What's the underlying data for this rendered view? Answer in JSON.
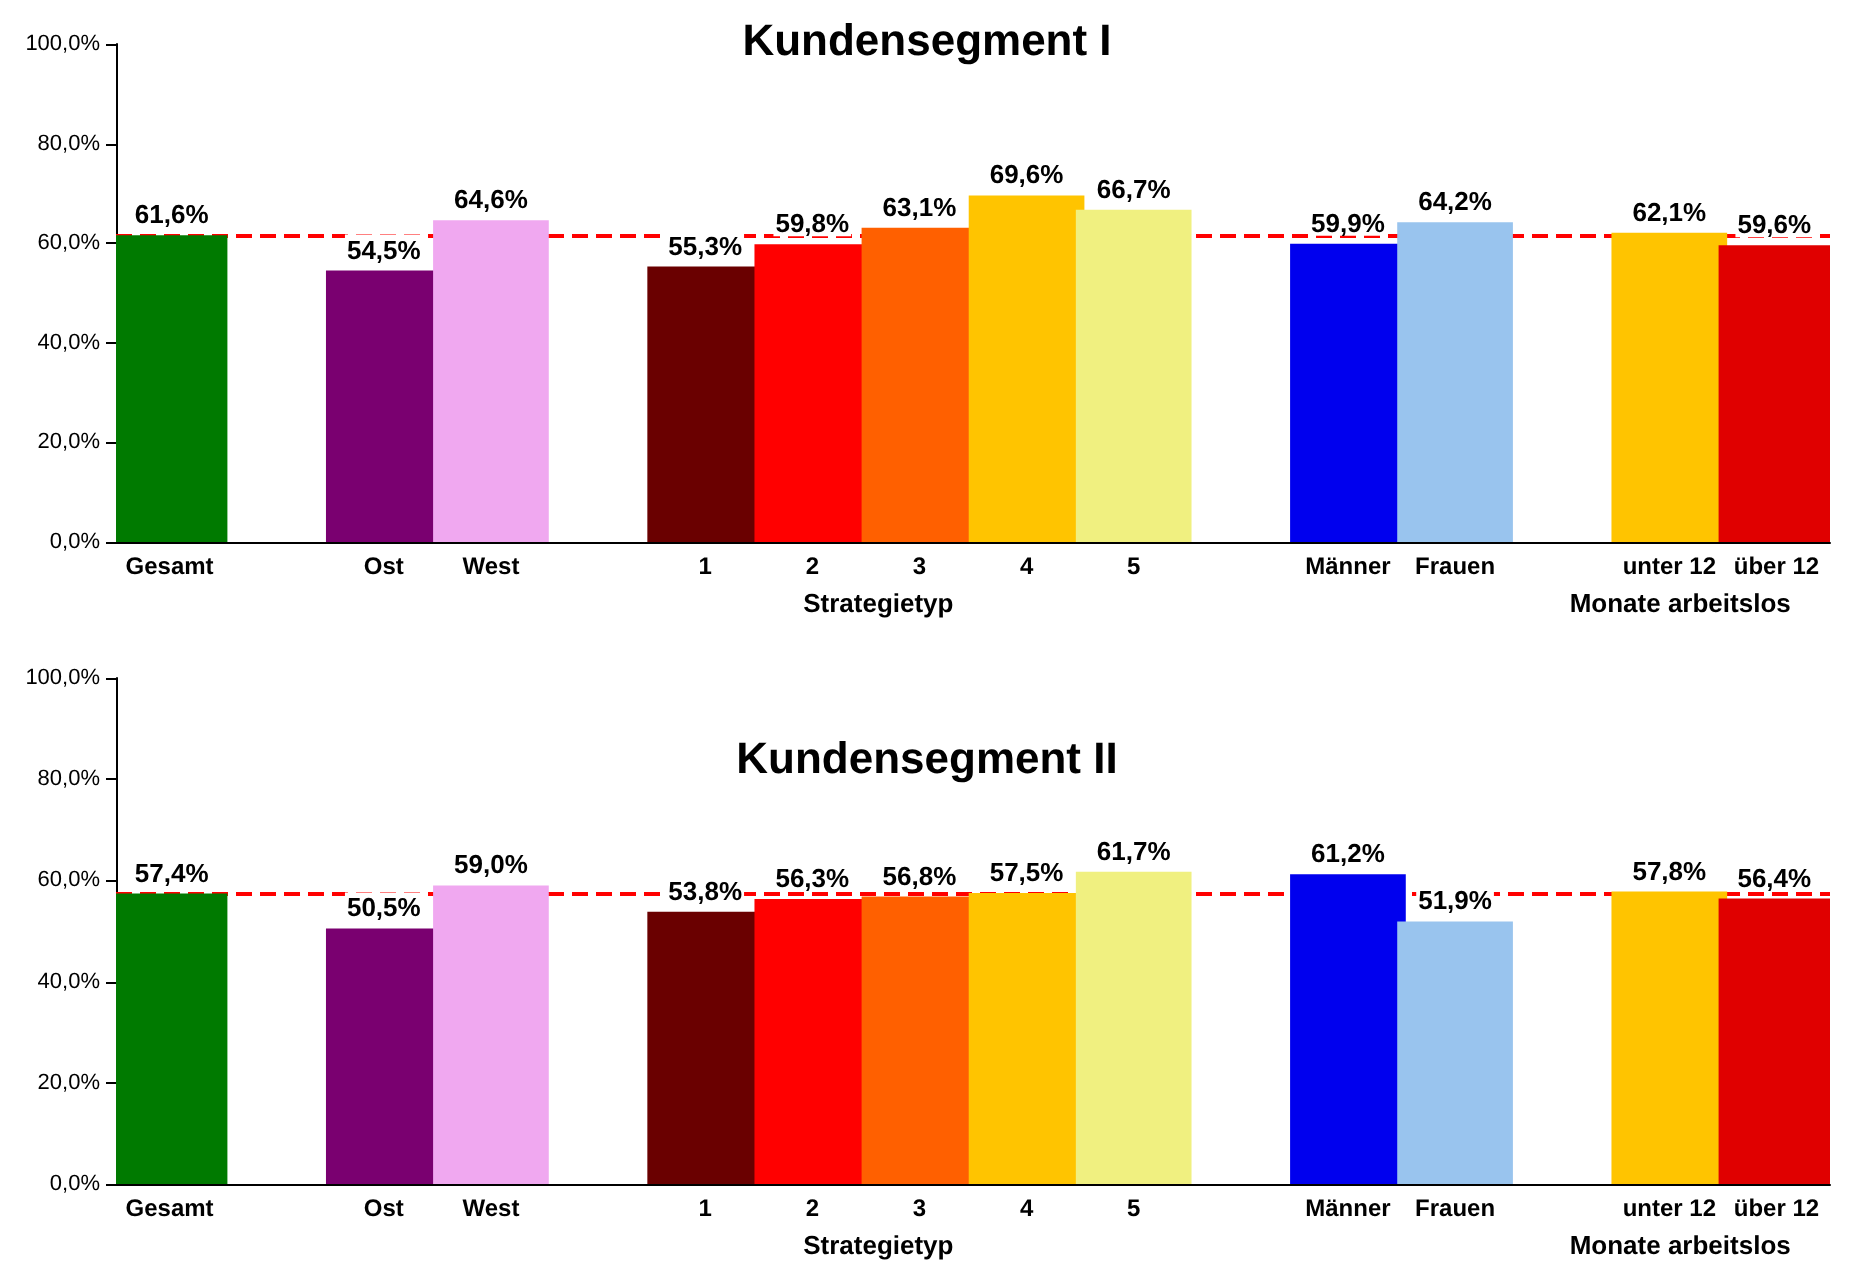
{
  "chart_data": [
    {
      "type": "bar",
      "title": "Kundensegment I",
      "categories": [
        "Gesamt",
        null,
        "Ost",
        "West",
        null,
        "1",
        "2",
        "3",
        "4",
        "5",
        null,
        "Männer",
        "Frauen",
        null,
        "unter 12",
        "über 12"
      ],
      "values": [
        61.6,
        null,
        54.5,
        64.6,
        null,
        55.3,
        59.8,
        63.1,
        69.6,
        66.7,
        null,
        59.9,
        64.2,
        null,
        62.1,
        59.6
      ],
      "value_labels": [
        "61,6%",
        null,
        "54,5%",
        "64,6%",
        null,
        "55,3%",
        "59,8%",
        "63,1%",
        "69,6%",
        "66,7%",
        null,
        "59,9%",
        "64,2%",
        null,
        "62,1%",
        "59,6%"
      ],
      "colors": [
        "#007a00",
        "#ffffff",
        "#7a0070",
        "#f0a8f0",
        "#ffffff",
        "#6a0000",
        "#ff0000",
        "#ff6000",
        "#ffc400",
        "#f0f080",
        "#ffffff",
        "#0000ee",
        "#99c4ee",
        "#ffffff",
        "#ffc400",
        "#e00000"
      ],
      "ylim": [
        0,
        100
      ],
      "yticks": [
        {
          "value": 0,
          "label": "0,0%"
        },
        {
          "value": 20,
          "label": "20,0%"
        },
        {
          "value": 40,
          "label": "40,0%"
        },
        {
          "value": 60,
          "label": "60,0%"
        },
        {
          "value": 80,
          "label": "80,0%"
        },
        {
          "value": 100,
          "label": "100,0%"
        }
      ],
      "ref_lines": [
        {
          "axis": "y",
          "value": 61.6,
          "color": "#ff0000",
          "line_style": "dashed"
        }
      ],
      "annotations": [
        "Strategietyp",
        "Monate arbeitslos"
      ]
    },
    {
      "type": "bar",
      "title": "Kundensegment II",
      "categories": [
        "Gesamt",
        null,
        "Ost",
        "West",
        null,
        "1",
        "2",
        "3",
        "4",
        "5",
        null,
        "Männer",
        "Frauen",
        null,
        "unter 12",
        "über 12"
      ],
      "values": [
        57.4,
        null,
        50.5,
        59.0,
        null,
        53.8,
        56.3,
        56.8,
        57.5,
        61.7,
        null,
        61.2,
        51.9,
        null,
        57.8,
        56.4
      ],
      "value_labels": [
        "57,4%",
        null,
        "50,5%",
        "59,0%",
        null,
        "53,8%",
        "56,3%",
        "56,8%",
        "57,5%",
        "61,7%",
        null,
        "61,2%",
        "51,9%",
        null,
        "57,8%",
        "56,4%"
      ],
      "colors": [
        "#007a00",
        "#ffffff",
        "#7a0070",
        "#f0a8f0",
        "#ffffff",
        "#6a0000",
        "#ff0000",
        "#ff6000",
        "#ffc400",
        "#f0f080",
        "#ffffff",
        "#0000ee",
        "#99c4ee",
        "#ffffff",
        "#ffc400",
        "#e00000"
      ],
      "ylim": [
        0,
        100
      ],
      "yticks": [
        {
          "value": 0,
          "label": "0,0%"
        },
        {
          "value": 20,
          "label": "20,0%"
        },
        {
          "value": 40,
          "label": "40,0%"
        },
        {
          "value": 60,
          "label": "60,0%"
        },
        {
          "value": 80,
          "label": "80,0%"
        },
        {
          "value": 100,
          "label": "100,0%"
        }
      ],
      "ref_lines": [
        {
          "axis": "y",
          "value": 57.4,
          "color": "#ff0000",
          "line_style": "dashed"
        }
      ],
      "annotations": [
        "Strategietyp",
        "Monate arbeitslos"
      ]
    }
  ]
}
